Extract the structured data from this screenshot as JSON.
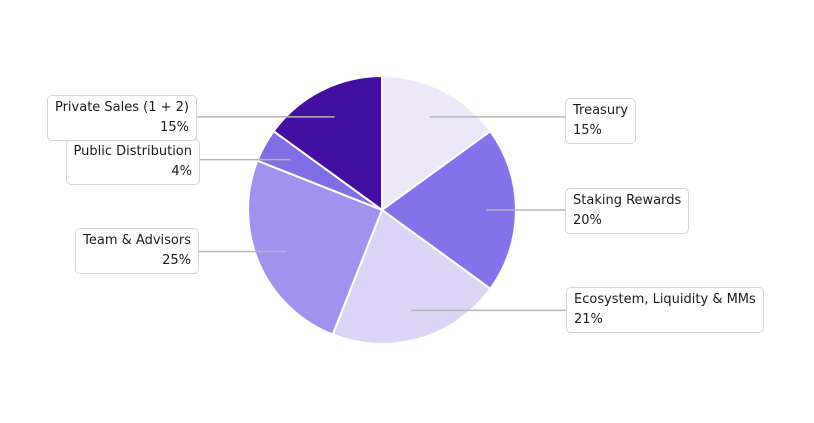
{
  "chart_data": {
    "type": "pie",
    "title": "",
    "direction": "clockwise",
    "start_angle": "top",
    "separator_color": "#ffffff",
    "leader_line_color": "#b5b5b5",
    "background_color": "#ffffff",
    "slices": [
      {
        "label": "Treasury",
        "pct_label": "15%",
        "value": 15,
        "color": "#EDE7FA",
        "side": "right"
      },
      {
        "label": "Staking Rewards",
        "pct_label": "20%",
        "value": 20,
        "color": "#8573EC",
        "side": "right"
      },
      {
        "label": "Ecosystem, Liquidity & MMs",
        "pct_label": "21%",
        "value": 21,
        "color": "#DDD5F8",
        "side": "right"
      },
      {
        "label": "Team & Advisors",
        "pct_label": "25%",
        "value": 25,
        "color": "#A192EF",
        "side": "left"
      },
      {
        "label": "Public Distribution",
        "pct_label": "4%",
        "value": 4,
        "color": "#7F6EE4",
        "side": "left"
      },
      {
        "label": "Private Sales (1 + 2)",
        "pct_label": "15%",
        "value": 15,
        "color": "#430FA0",
        "side": "left"
      }
    ]
  }
}
